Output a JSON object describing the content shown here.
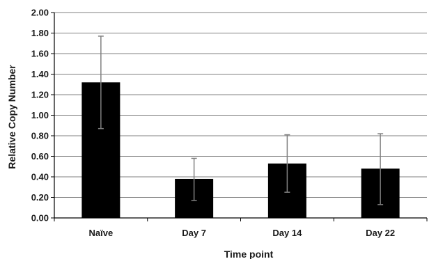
{
  "chart_data": {
    "type": "bar",
    "xlabel": "Time point",
    "ylabel": "Relative Copy Number",
    "categories": [
      "Naïve",
      "Day 7",
      "Day 14",
      "Day 22"
    ],
    "values": [
      1.32,
      0.38,
      0.53,
      0.48
    ],
    "error_upper": [
      1.77,
      0.58,
      0.81,
      0.82
    ],
    "error_lower": [
      0.87,
      0.17,
      0.25,
      0.13
    ],
    "ylim": [
      0,
      2.0
    ],
    "yticks": [
      "0.00",
      "0.20",
      "0.40",
      "0.60",
      "0.80",
      "1.00",
      "1.20",
      "1.40",
      "1.60",
      "1.80",
      "2.00"
    ],
    "grid": true,
    "legend": "none",
    "colors": {
      "bar": "#000000",
      "error_bar": "#808080",
      "grid": "#808080",
      "axis": "#000000"
    }
  }
}
